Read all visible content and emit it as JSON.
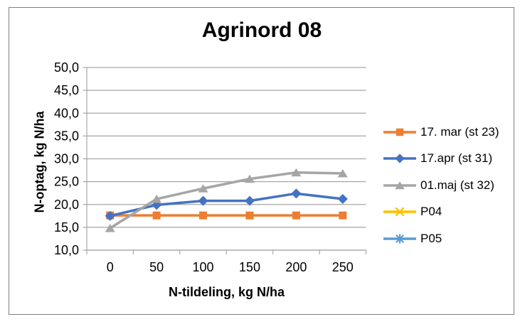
{
  "window": {
    "background": "#ffffff",
    "frame_border_color": "#7f7f7f"
  },
  "chart_data": {
    "type": "line",
    "title": "Agrinord 08",
    "xlabel": "N-tildeling, kg N/ha",
    "ylabel": "N-optag, kg N/ha",
    "categories": [
      0,
      50,
      100,
      150,
      200,
      250
    ],
    "x_tick_labels": [
      "0",
      "50",
      "100",
      "150",
      "200",
      "250"
    ],
    "y_ticks": [
      10,
      15,
      20,
      25,
      30,
      35,
      40,
      45,
      50
    ],
    "y_tick_labels": [
      "10,0",
      "15,0",
      "20,0",
      "25,0",
      "30,0",
      "35,0",
      "40,0",
      "45,0",
      "50,0"
    ],
    "ylim": [
      10,
      50
    ],
    "grid": "horizontal",
    "legend_position": "right",
    "axis_color": "#a6a6a6",
    "gridline_color": "#a6a6a6",
    "text_color": "#000000",
    "series": [
      {
        "name": "17. mar (st 23)",
        "color": "#ED7D31",
        "marker": "square",
        "values": [
          17.6,
          17.6,
          17.6,
          17.6,
          17.6,
          17.6
        ]
      },
      {
        "name": "17.apr (st 31)",
        "color": "#4472C4",
        "marker": "diamond",
        "values": [
          17.5,
          19.9,
          20.8,
          20.8,
          22.4,
          21.2
        ]
      },
      {
        "name": "01.maj (st 32)",
        "color": "#A5A5A5",
        "marker": "triangle",
        "values": [
          14.8,
          21.2,
          23.5,
          25.6,
          27.0,
          26.8
        ]
      },
      {
        "name": "P04",
        "color": "#FFC000",
        "marker": "x",
        "values": []
      },
      {
        "name": "P05",
        "color": "#5B9BD5",
        "marker": "asterisk",
        "values": []
      }
    ]
  }
}
